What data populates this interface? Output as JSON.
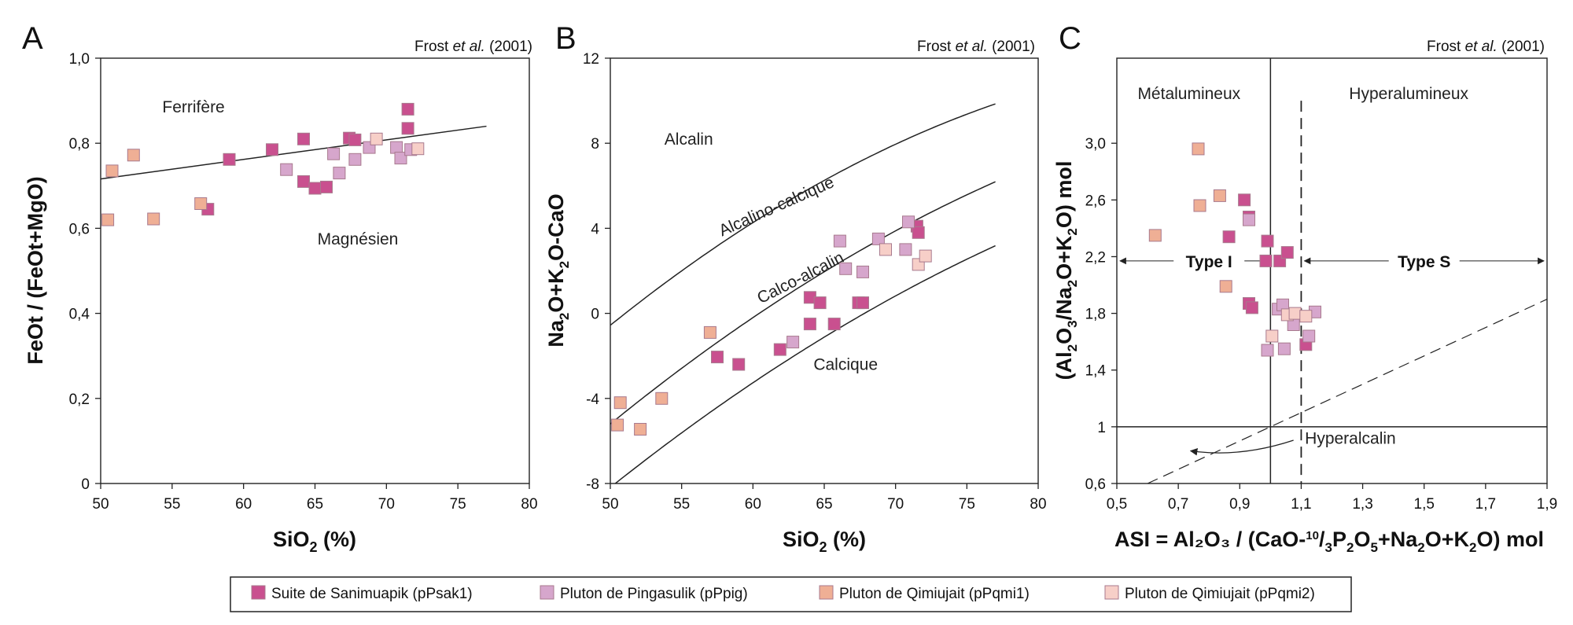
{
  "colors": {
    "pPsak1": "#c9508f",
    "pPpig": "#d6a6cc",
    "pPqmi1": "#efaf95",
    "pPqmi2": "#f7cfc8",
    "stroke": "#a87a8e"
  },
  "legend": {
    "items": [
      {
        "key": "pPsak1",
        "label": "Suite de Sanimuapik (pPsak1)"
      },
      {
        "key": "pPpig",
        "label": "Pluton de Pingasulik (pPpig)"
      },
      {
        "key": "pPqmi1",
        "label": "Pluton de Qimiujait (pPqmi1)"
      },
      {
        "key": "pPqmi2",
        "label": "Pluton de Qimiujait (pPqmi2)"
      }
    ]
  },
  "chart_data": [
    {
      "panel": "A",
      "type": "scatter",
      "credit_pre": "Frost ",
      "credit_it": "et al.",
      "credit_post": " (2001)",
      "xlabel_main": "SiO",
      "xlabel_sub": "2",
      "xlabel_tail": " (%)",
      "ylabel": "FeOt / (FeOt+MgO)",
      "xlim": [
        50,
        80
      ],
      "ylim": [
        0,
        1.0
      ],
      "xticks": [
        {
          "v": 50,
          "t": "50"
        },
        {
          "v": 55,
          "t": "55"
        },
        {
          "v": 60,
          "t": "60"
        },
        {
          "v": 65,
          "t": "65"
        },
        {
          "v": 70,
          "t": "70"
        },
        {
          "v": 75,
          "t": "75"
        },
        {
          "v": 80,
          "t": "80"
        }
      ],
      "yticks": [
        {
          "v": 0,
          "t": "0"
        },
        {
          "v": 0.2,
          "t": "0,2"
        },
        {
          "v": 0.4,
          "t": "0,4"
        },
        {
          "v": 0.6,
          "t": "0,6"
        },
        {
          "v": 0.8,
          "t": "0,8"
        },
        {
          "v": 1.0,
          "t": "1,0"
        }
      ],
      "regions": [
        {
          "text": "Ferrifère",
          "x": 56.5,
          "y": 0.885
        },
        {
          "text": "Magnésien",
          "x": 68,
          "y": 0.575
        }
      ],
      "lines": [
        {
          "x": [
            50,
            77
          ],
          "y": [
            0.716,
            0.84
          ]
        }
      ],
      "series": [
        {
          "key": "pPsak1",
          "points": [
            [
              57.5,
              0.645
            ],
            [
              59,
              0.762
            ],
            [
              62,
              0.785
            ],
            [
              64.2,
              0.81
            ],
            [
              64.2,
              0.71
            ],
            [
              65,
              0.694
            ],
            [
              65.8,
              0.697
            ],
            [
              67.4,
              0.812
            ],
            [
              67.8,
              0.808
            ],
            [
              71.5,
              0.88
            ],
            [
              71.5,
              0.835
            ]
          ]
        },
        {
          "key": "pPpig",
          "points": [
            [
              63,
              0.738
            ],
            [
              66.3,
              0.775
            ],
            [
              66.7,
              0.73
            ],
            [
              67.8,
              0.762
            ],
            [
              68.8,
              0.79
            ],
            [
              70.7,
              0.79
            ],
            [
              71,
              0.765
            ],
            [
              71.7,
              0.785
            ]
          ]
        },
        {
          "key": "pPqmi1",
          "points": [
            [
              50.5,
              0.62
            ],
            [
              50.8,
              0.735
            ],
            [
              52.3,
              0.772
            ],
            [
              53.7,
              0.622
            ],
            [
              57,
              0.658
            ]
          ]
        },
        {
          "key": "pPqmi2",
          "points": [
            [
              69.3,
              0.81
            ],
            [
              72.2,
              0.787
            ]
          ]
        }
      ]
    },
    {
      "panel": "B",
      "type": "scatter",
      "credit_pre": "Frost ",
      "credit_it": "et al.",
      "credit_post": " (2001)",
      "xlabel_main": "SiO",
      "xlabel_sub": "2",
      "xlabel_tail": " (%)",
      "ylabel_parts": [
        {
          "t": "Na"
        },
        {
          "t": "2",
          "sub": true
        },
        {
          "t": "O+K"
        },
        {
          "t": "2",
          "sub": true
        },
        {
          "t": "O-CaO"
        }
      ],
      "xlim": [
        50,
        80
      ],
      "ylim": [
        -8,
        12
      ],
      "xticks": [
        {
          "v": 50,
          "t": "50"
        },
        {
          "v": 55,
          "t": "55"
        },
        {
          "v": 60,
          "t": "60"
        },
        {
          "v": 65,
          "t": "65"
        },
        {
          "v": 70,
          "t": "70"
        },
        {
          "v": 75,
          "t": "75"
        },
        {
          "v": 80,
          "t": "80"
        }
      ],
      "yticks": [
        {
          "v": -8,
          "t": "-8"
        },
        {
          "v": -4,
          "t": "-4"
        },
        {
          "v": 0,
          "t": "0"
        },
        {
          "v": 4,
          "t": "4"
        },
        {
          "v": 8,
          "t": "8"
        },
        {
          "v": 12,
          "t": "12"
        }
      ],
      "regions": [
        {
          "text": "Alcalin",
          "x": 55.5,
          "y": 8.2
        },
        {
          "text": "Calcique",
          "x": 66.5,
          "y": -2.4
        }
      ],
      "curve_labels": [
        {
          "text": "Alcalino-calcique",
          "x": 61.8,
          "y": 4.8,
          "angle": -24
        },
        {
          "text": "Calco-alcalin",
          "x": 63.5,
          "y": 1.45,
          "angle": -27
        }
      ],
      "curves": [
        {
          "a": -41.86,
          "b": 1.112,
          "c": -0.00572
        },
        {
          "a": -44.0,
          "b": 1.006,
          "c": -0.0046
        },
        {
          "a": -45.36,
          "b": 0.953,
          "c": -0.00419
        }
      ],
      "series": [
        {
          "key": "pPsak1",
          "points": [
            [
              57.5,
              -2.05
            ],
            [
              59,
              -2.4
            ],
            [
              61.9,
              -1.7
            ],
            [
              64,
              0.75
            ],
            [
              64,
              -0.5
            ],
            [
              64.7,
              0.5
            ],
            [
              65.7,
              -0.5
            ],
            [
              67.4,
              0.5
            ],
            [
              67.7,
              0.5
            ],
            [
              71.5,
              4.1
            ],
            [
              71.6,
              3.8
            ]
          ]
        },
        {
          "key": "pPpig",
          "points": [
            [
              62.8,
              -1.35
            ],
            [
              66.1,
              3.4
            ],
            [
              66.5,
              2.1
            ],
            [
              67.7,
              1.95
            ],
            [
              68.8,
              3.5
            ],
            [
              70.7,
              3.0
            ],
            [
              70.9,
              4.3
            ]
          ]
        },
        {
          "key": "pPqmi1",
          "points": [
            [
              50.5,
              -5.25
            ],
            [
              50.7,
              -4.2
            ],
            [
              52.1,
              -5.45
            ],
            [
              53.6,
              -4.0
            ],
            [
              57,
              -0.9
            ]
          ]
        },
        {
          "key": "pPqmi2",
          "points": [
            [
              69.3,
              3.0
            ],
            [
              71.6,
              2.3
            ],
            [
              72.1,
              2.7
            ]
          ]
        }
      ]
    },
    {
      "panel": "C",
      "type": "scatter",
      "credit_pre": "Frost ",
      "credit_it": "et al.",
      "credit_post": " (2001)",
      "xlabel_parts": [
        {
          "t": "ASI = Al₂O₃ / (CaO-"
        },
        {
          "t": "10",
          "sup": true
        },
        {
          "t": "/"
        },
        {
          "t": "3",
          "sub": true
        },
        {
          "t": "P"
        },
        {
          "t": "2",
          "sub": true
        },
        {
          "t": "O"
        },
        {
          "t": "5",
          "sub": true
        },
        {
          "t": "+Na"
        },
        {
          "t": "2",
          "sub": true
        },
        {
          "t": "O+K"
        },
        {
          "t": "2",
          "sub": true
        },
        {
          "t": "O) mol"
        }
      ],
      "ylabel_parts": [
        {
          "t": "(Al"
        },
        {
          "t": "2",
          "sub": true
        },
        {
          "t": "O"
        },
        {
          "t": "3",
          "sub": true
        },
        {
          "t": "/Na"
        },
        {
          "t": "2",
          "sub": true
        },
        {
          "t": "O+K"
        },
        {
          "t": "2",
          "sub": true
        },
        {
          "t": "O) mol"
        }
      ],
      "xlim": [
        0.5,
        1.9
      ],
      "ylim": [
        0.6,
        3.6
      ],
      "xticks": [
        {
          "v": 0.5,
          "t": "0,5"
        },
        {
          "v": 0.7,
          "t": "0,7"
        },
        {
          "v": 0.9,
          "t": "0,9"
        },
        {
          "v": 1.1,
          "t": "1,1"
        },
        {
          "v": 1.3,
          "t": "1,3"
        },
        {
          "v": 1.5,
          "t": "1,5"
        },
        {
          "v": 1.7,
          "t": "1,7"
        },
        {
          "v": 1.9,
          "t": "1,9"
        }
      ],
      "yticks": [
        {
          "v": 0.6,
          "t": "0,6"
        },
        {
          "v": 1.0,
          "t": "1"
        },
        {
          "v": 1.4,
          "t": "1,4"
        },
        {
          "v": 1.8,
          "t": "1,8"
        },
        {
          "v": 2.2,
          "t": "2,2"
        },
        {
          "v": 2.6,
          "t": "2,6"
        },
        {
          "v": 3.0,
          "t": "3,0"
        }
      ],
      "regions": [
        {
          "text": "Métalumineux",
          "x": 0.735,
          "y": 3.35
        },
        {
          "text": "Hyperalumineux",
          "x": 1.45,
          "y": 3.35
        },
        {
          "text": "Hyperalcalin",
          "x": 1.26,
          "y": 0.92
        }
      ],
      "type_labels": [
        {
          "text": "Type I",
          "x": 0.8,
          "y": 2.17
        },
        {
          "text": "Type S",
          "x": 1.5,
          "y": 2.17
        }
      ],
      "series": [
        {
          "key": "pPsak1",
          "points": [
            [
              0.865,
              2.34
            ],
            [
              0.915,
              2.6
            ],
            [
              0.93,
              2.48
            ],
            [
              0.93,
              1.87
            ],
            [
              0.94,
              1.84
            ],
            [
              0.985,
              2.17
            ],
            [
              0.99,
              2.31
            ],
            [
              1.03,
              2.17
            ],
            [
              1.055,
              2.23
            ],
            [
              1.115,
              1.58
            ]
          ]
        },
        {
          "kind": "pPpig",
          "key": "pPpig",
          "points": [
            [
              0.93,
              2.46
            ],
            [
              0.99,
              1.54
            ],
            [
              1.025,
              1.83
            ],
            [
              1.04,
              1.86
            ],
            [
              1.045,
              1.55
            ],
            [
              1.075,
              1.72
            ],
            [
              1.125,
              1.64
            ],
            [
              1.145,
              1.81
            ]
          ]
        },
        {
          "key": "pPqmi1",
          "points": [
            [
              0.625,
              2.35
            ],
            [
              0.765,
              2.96
            ],
            [
              0.77,
              2.56
            ],
            [
              0.835,
              2.63
            ],
            [
              0.855,
              1.99
            ]
          ]
        },
        {
          "key": "pPqmi2",
          "points": [
            [
              1.005,
              1.64
            ],
            [
              1.055,
              1.79
            ],
            [
              1.08,
              1.8
            ],
            [
              1.115,
              1.78
            ]
          ]
        }
      ]
    }
  ]
}
